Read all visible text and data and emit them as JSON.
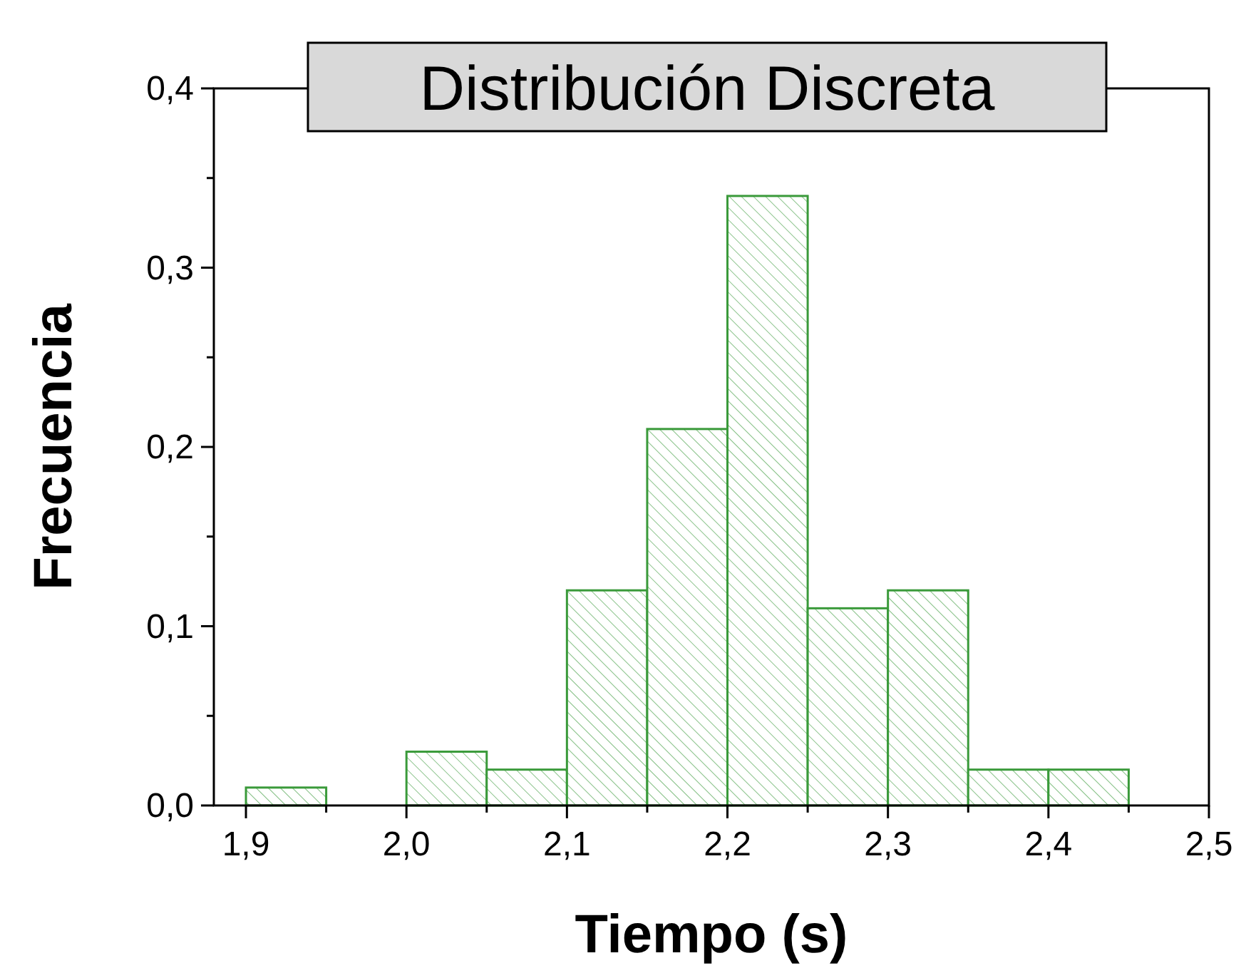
{
  "chart_data": {
    "type": "histogram",
    "title": "Distribución Discreta",
    "xlabel": "Tiempo (s)",
    "ylabel": "Frecuencia",
    "bins": [
      1.9,
      1.95,
      2.0,
      2.05,
      2.1,
      2.15,
      2.2,
      2.25,
      2.3,
      2.35,
      2.4,
      2.45
    ],
    "values": [
      0.01,
      0,
      0.03,
      0.02,
      0.12,
      0.21,
      0.34,
      0.11,
      0.12,
      0.02,
      0.02
    ],
    "color": "#3a9a3a",
    "xlim": [
      1.88,
      2.5
    ],
    "ylim": [
      0,
      0.4
    ],
    "xticks": [
      {
        "value": 1.9,
        "label": "1,9"
      },
      {
        "value": 2.0,
        "label": "2,0"
      },
      {
        "value": 2.1,
        "label": "2,1"
      },
      {
        "value": 2.2,
        "label": "2,2"
      },
      {
        "value": 2.3,
        "label": "2,3"
      },
      {
        "value": 2.4,
        "label": "2,4"
      },
      {
        "value": 2.5,
        "label": "2,5"
      },
      {
        "value": 1.95,
        "label": null
      },
      {
        "value": 2.05,
        "label": null
      },
      {
        "value": 2.15,
        "label": null
      },
      {
        "value": 2.25,
        "label": null
      },
      {
        "value": 2.35,
        "label": null
      },
      {
        "value": 2.45,
        "label": null
      }
    ],
    "yticks": [
      {
        "value": 0,
        "label": "0,0"
      },
      {
        "value": 0.1,
        "label": "0,1"
      },
      {
        "value": 0.2,
        "label": "0,2"
      },
      {
        "value": 0.3,
        "label": "0,3"
      },
      {
        "value": 0.4,
        "label": "0,4"
      },
      {
        "value": 0.05,
        "label": null
      },
      {
        "value": 0.15,
        "label": null
      },
      {
        "value": 0.25,
        "label": null
      },
      {
        "value": 0.35,
        "label": null
      }
    ],
    "grid": false
  }
}
